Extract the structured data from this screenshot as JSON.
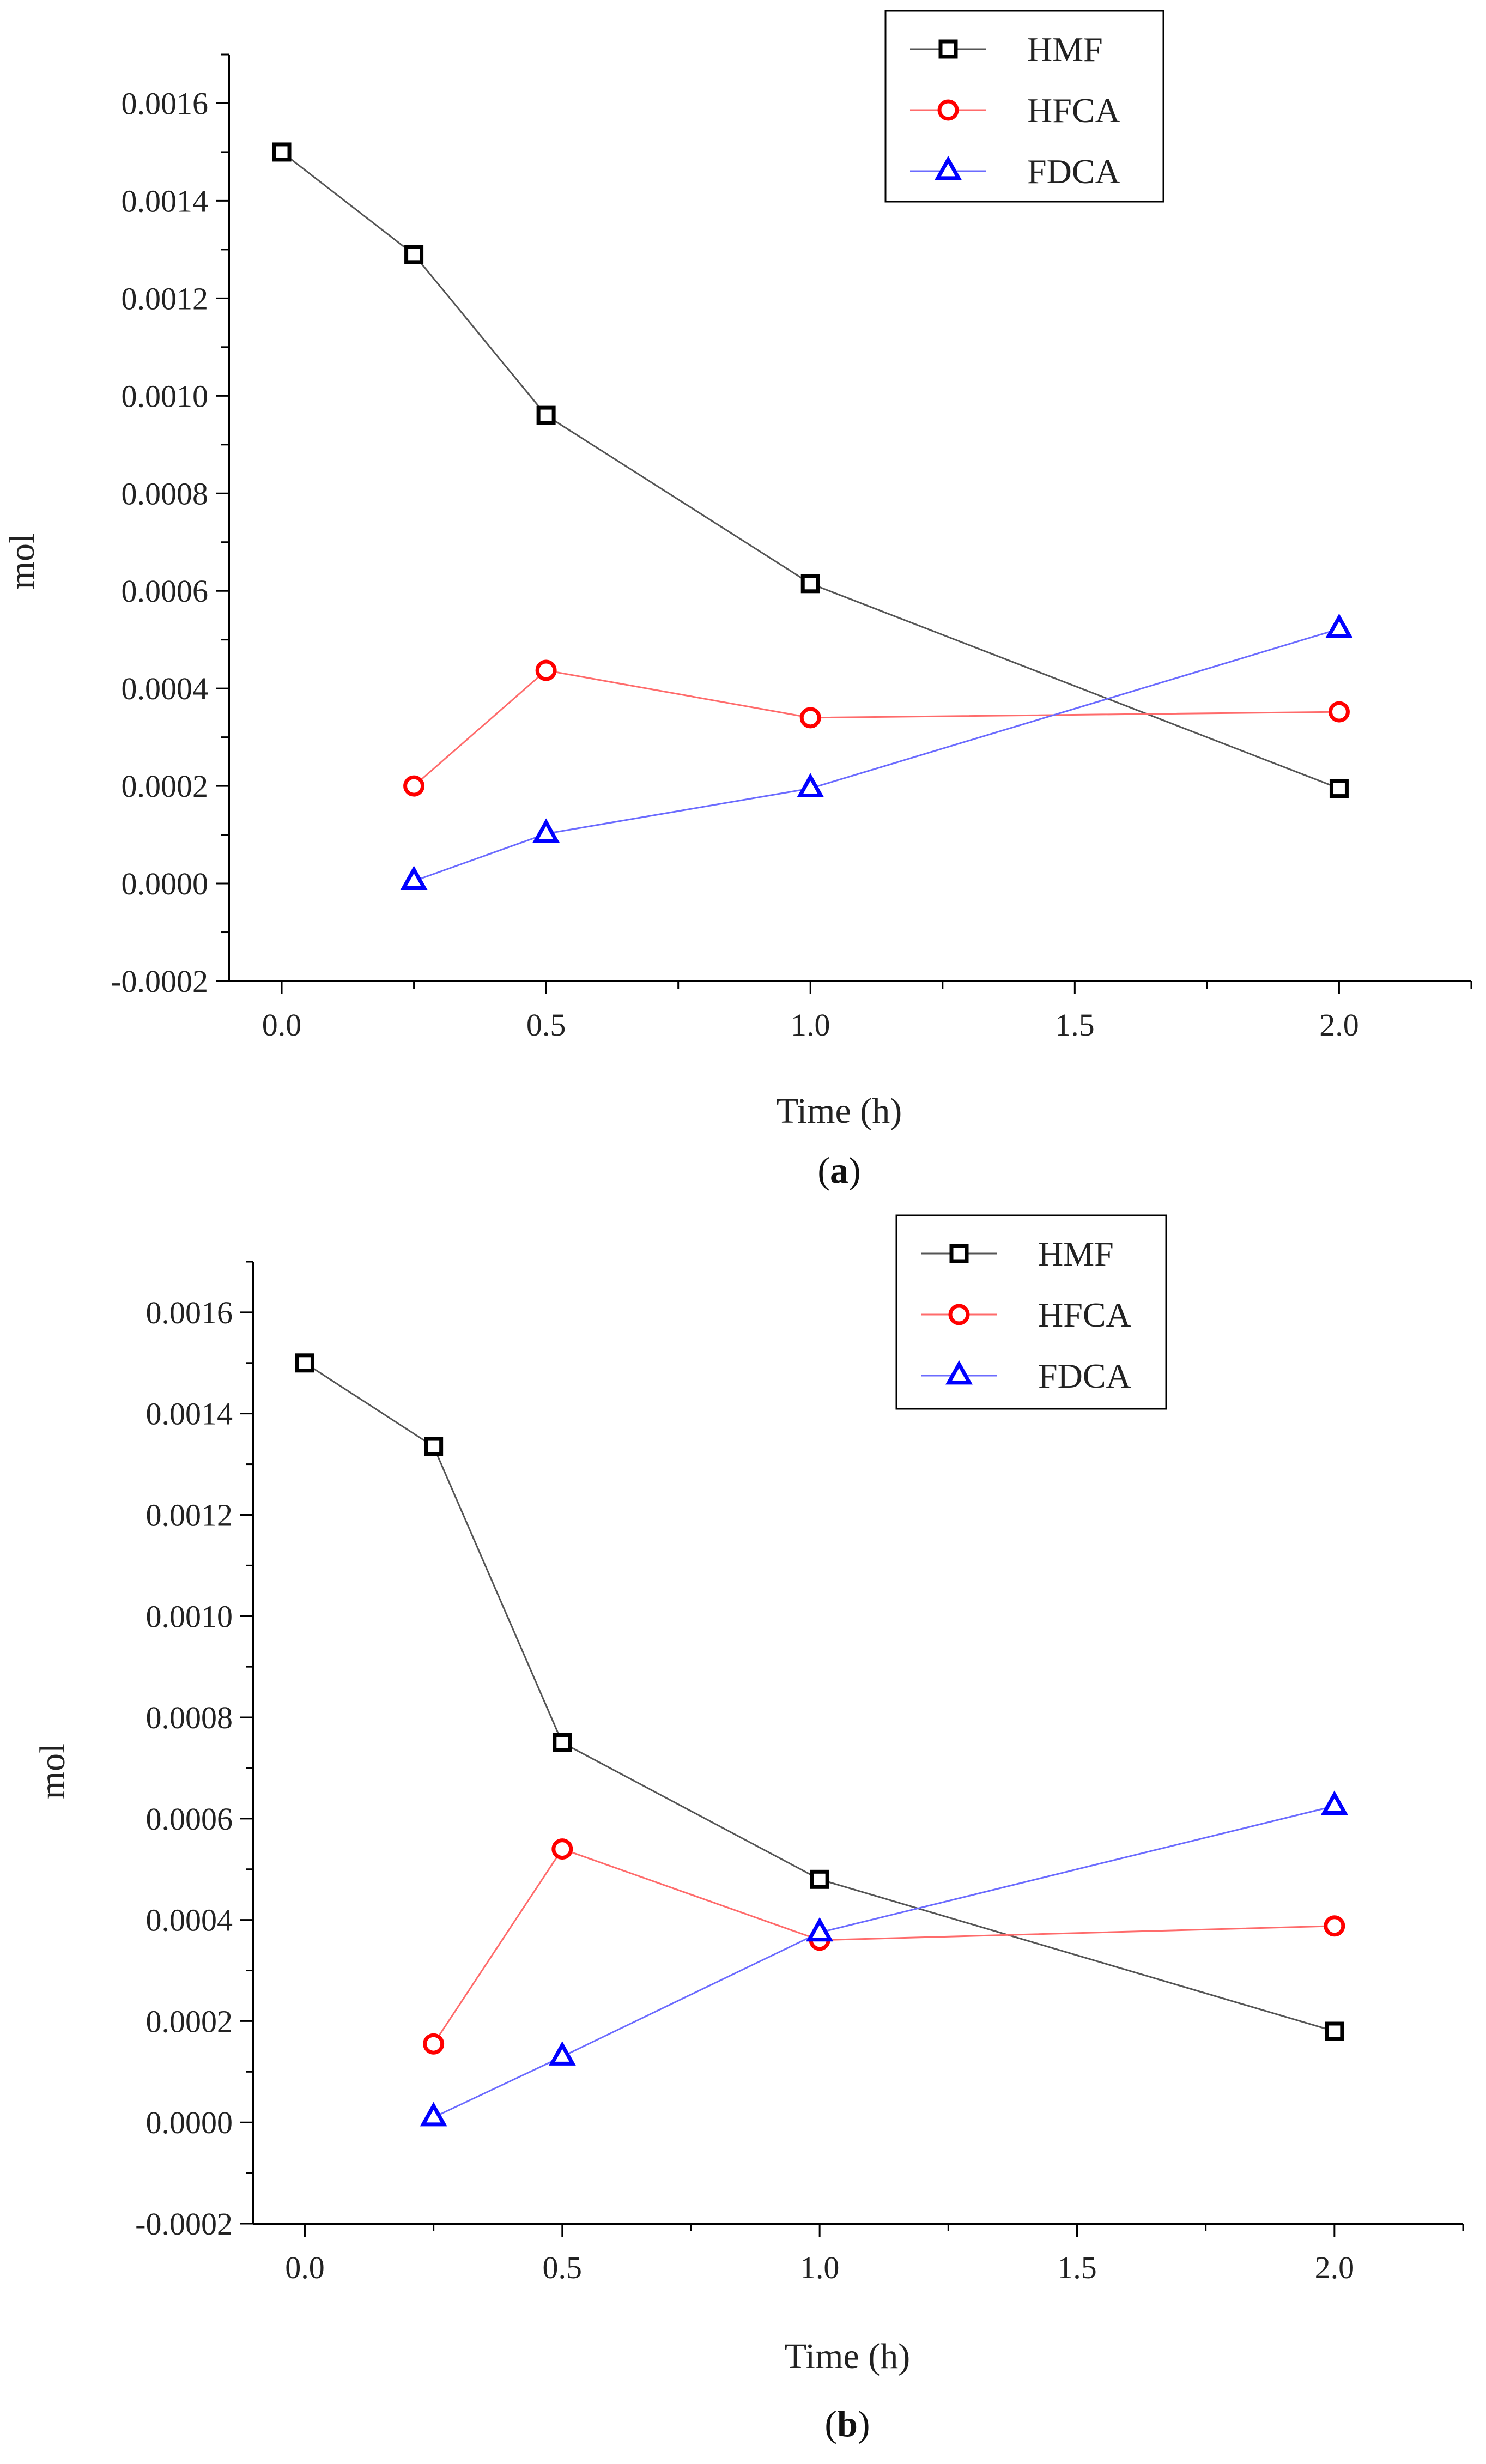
{
  "chart_data": [
    {
      "type": "line",
      "caption_letter": "a",
      "xlabel": "Time (h)",
      "ylabel": "mol",
      "xlim": [
        -0.1,
        2.25
      ],
      "ylim": [
        -0.0002,
        0.0017
      ],
      "xticks": [
        0.0,
        0.5,
        1.0,
        1.5,
        2.0
      ],
      "xtick_labels": [
        "0.0",
        "0.5",
        "1.0",
        "1.5",
        "2.0"
      ],
      "yticks": [
        -0.0002,
        0.0,
        0.0002,
        0.0004,
        0.0006,
        0.0008,
        0.001,
        0.0012,
        0.0014,
        0.0016
      ],
      "ytick_labels": [
        "-0.0002",
        "0.0000",
        "0.0002",
        "0.0004",
        "0.0006",
        "0.0008",
        "0.0010",
        "0.0012",
        "0.0014",
        "0.0016"
      ],
      "legend_position": "top-right",
      "series": [
        {
          "name": "HMF",
          "marker": "square",
          "color": "#000000",
          "line_color": "#555555",
          "x": [
            0.0,
            0.25,
            0.5,
            1.0,
            2.0
          ],
          "y": [
            0.0015,
            0.00129,
            0.00096,
            0.000615,
            0.000195
          ]
        },
        {
          "name": "HFCA",
          "marker": "circle",
          "color": "#ff0000",
          "line_color": "#ff6b6b",
          "x": [
            0.25,
            0.5,
            1.0,
            2.0
          ],
          "y": [
            0.0002,
            0.000437,
            0.00034,
            0.000352
          ]
        },
        {
          "name": "FDCA",
          "marker": "triangle",
          "color": "#0000ff",
          "line_color": "#6b6bff",
          "x": [
            0.25,
            0.5,
            1.0,
            2.0
          ],
          "y": [
            5e-06,
            0.000102,
            0.000195,
            0.000522
          ]
        }
      ]
    },
    {
      "type": "line",
      "caption_letter": "b",
      "xlabel": "Time (h)",
      "ylabel": "mol",
      "xlim": [
        -0.1,
        2.25
      ],
      "ylim": [
        -0.0002,
        0.0017
      ],
      "xticks": [
        0.0,
        0.5,
        1.0,
        1.5,
        2.0
      ],
      "xtick_labels": [
        "0.0",
        "0.5",
        "1.0",
        "1.5",
        "2.0"
      ],
      "yticks": [
        -0.0002,
        0.0,
        0.0002,
        0.0004,
        0.0006,
        0.0008,
        0.001,
        0.0012,
        0.0014,
        0.0016
      ],
      "ytick_labels": [
        "-0.0002",
        "0.0000",
        "0.0002",
        "0.0004",
        "0.0006",
        "0.0008",
        "0.0010",
        "0.0012",
        "0.0014",
        "0.0016"
      ],
      "legend_position": "top-right",
      "series": [
        {
          "name": "HMF",
          "marker": "square",
          "color": "#000000",
          "line_color": "#555555",
          "x": [
            0.0,
            0.25,
            0.5,
            1.0,
            2.0
          ],
          "y": [
            0.0015,
            0.001335,
            0.00075,
            0.00048,
            0.00018
          ]
        },
        {
          "name": "HFCA",
          "marker": "circle",
          "color": "#ff0000",
          "line_color": "#ff6b6b",
          "x": [
            0.25,
            0.5,
            1.0,
            2.0
          ],
          "y": [
            0.000155,
            0.00054,
            0.00036,
            0.000388
          ]
        },
        {
          "name": "FDCA",
          "marker": "triangle",
          "color": "#0000ff",
          "line_color": "#6b6bff",
          "x": [
            0.25,
            0.5,
            1.0,
            2.0
          ],
          "y": [
            1e-05,
            0.00013,
            0.000375,
            0.000625
          ]
        }
      ]
    }
  ]
}
